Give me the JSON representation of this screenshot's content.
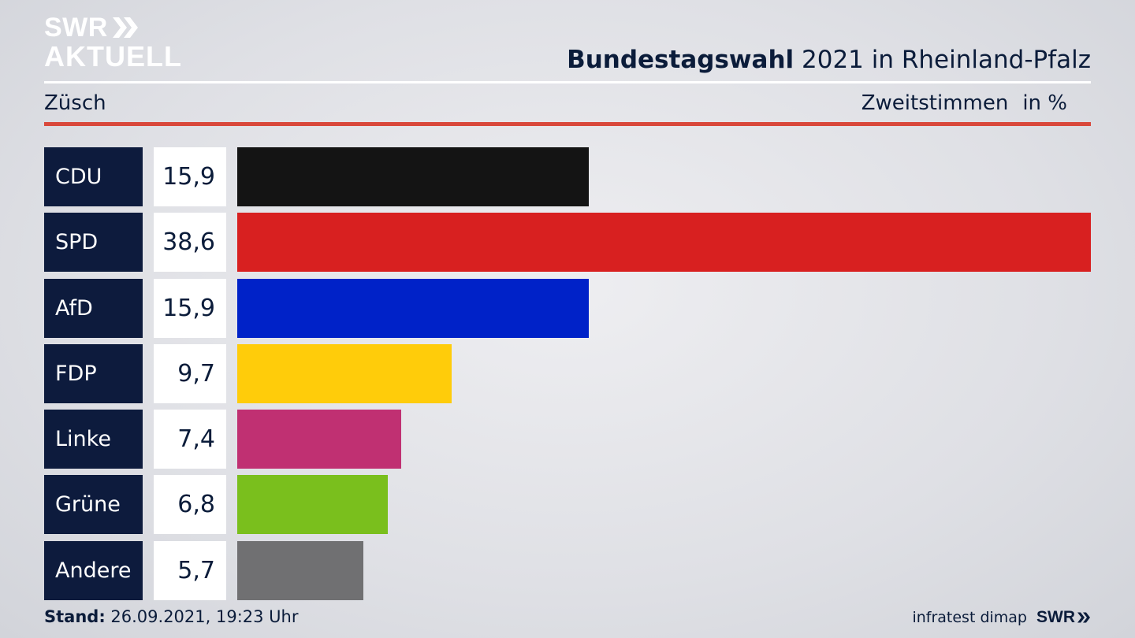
{
  "logo": {
    "line1": "SWR",
    "line2": "AKTUELL"
  },
  "title": {
    "bold": "Bundestagswahl",
    "rest": " 2021 in Rheinland-Pfalz"
  },
  "region": "Züsch",
  "measure": {
    "label": "Zweitstimmen",
    "unit": "in %"
  },
  "chart_data": {
    "type": "bar",
    "orientation": "horizontal",
    "title": "Bundestagswahl 2021 in Rheinland-Pfalz",
    "subtitle": "Zweitstimmen in %",
    "categories": [
      "CDU",
      "SPD",
      "AfD",
      "FDP",
      "Linke",
      "Grüne",
      "Andere"
    ],
    "values": [
      15.9,
      38.6,
      15.9,
      9.7,
      7.4,
      6.8,
      5.7
    ],
    "value_labels": [
      "15,9",
      "38,6",
      "15,9",
      "9,7",
      "7,4",
      "6,8",
      "5,7"
    ],
    "colors": [
      "#141414",
      "#d82020",
      "#0022c8",
      "#ffcc0a",
      "#c03072",
      "#7abf1d",
      "#707072"
    ],
    "xlim": [
      0,
      38.6
    ]
  },
  "footer": {
    "stand_label": "Stand:",
    "stand_value": " 26.09.2021, 19:23 Uhr",
    "source": "infratest dimap",
    "brand": "SWR"
  }
}
